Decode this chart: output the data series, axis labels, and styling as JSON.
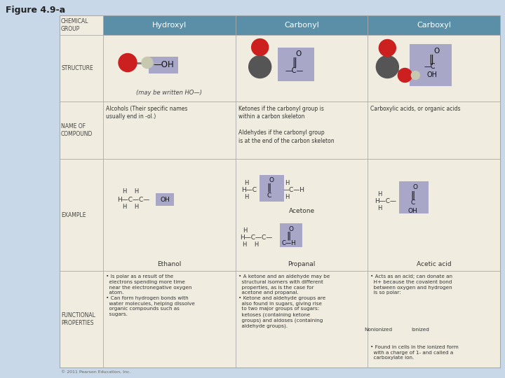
{
  "title": "Figure 4.9-a",
  "bg_color": "#c8d8e8",
  "table_bg": "#f0ede0",
  "header_bg": "#5b8fa8",
  "header_text_color": "#ffffff",
  "row_label_color": "#444444",
  "col_headers": [
    "Hydroxyl",
    "Carbonyl",
    "Carboxyl"
  ],
  "name_of_compound": [
    "Alcohols (Their specific names\nusually end in -ol.)",
    "Ketones if the carbonyl group is\nwithin a carbon skeleton\n\nAldehydes if the carbonyl group\nis at the end of the carbon skeleton",
    "Carboxylic acids, or organic acids"
  ],
  "functional_props_1": "• Is polar as a result of the\n  electrons spending more time\n  near the electronegative oxygen\n  atom.\n• Can form hydrogen bonds with\n  water molecules, helping dissolve\n  organic compounds such as\n  sugars.",
  "functional_props_2": "• A ketone and an aldehyde may be\n  structural isomers with different\n  properties, as is the case for\n  acetone and propanal.\n• Ketone and aldehyde groups are\n  also found in sugars, giving rise\n  to two major groups of sugars:\n  ketoses (containing ketone\n  groups) and aldoses (containing\n  aldehyde groups).",
  "functional_props_3a": "• Acts as an acid; can donate an\n  H+ because the covalent bond\n  between oxygen and hydrogen\n  is so polar:",
  "functional_props_3b": "• Found in cells in the ionized form\n  with a charge of 1- and called a\n  carboxylate ion.",
  "example_labels": [
    "Ethanol",
    "Acetone",
    "Acetic acid"
  ],
  "propanal_label": "Propanal",
  "structure_note": "(may be written HO—)",
  "purple_box": "#9090c0",
  "nonionized_label": "Nonionized",
  "ionized_label": "Ionized",
  "copyright": "© 2011 Pearson Education, Inc.",
  "o_color": "#cc2020",
  "c_color": "#555555",
  "h_color": "#c8c8b0",
  "o_color2": "#cc3030"
}
